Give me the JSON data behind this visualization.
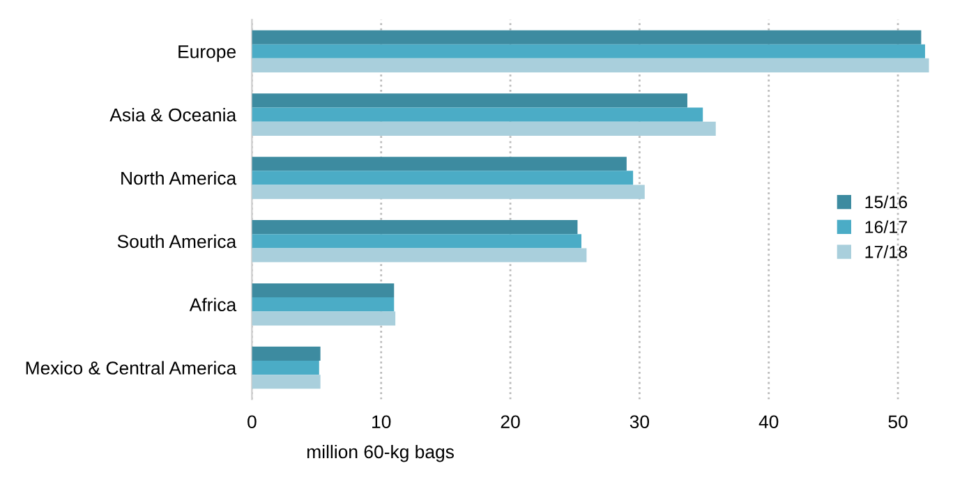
{
  "chart_data": {
    "type": "bar",
    "orientation": "horizontal",
    "xlabel": "million 60-kg bags",
    "categories": [
      "Europe",
      "Asia & Oceania",
      "North America",
      "South America",
      "Africa",
      "Mexico & Central America"
    ],
    "series": [
      {
        "name": "15/16",
        "color": "#3d8ba0",
        "values": [
          51.8,
          33.7,
          29.0,
          25.2,
          11.0,
          5.3
        ]
      },
      {
        "name": "16/17",
        "color": "#4bacc6",
        "values": [
          52.1,
          34.9,
          29.5,
          25.5,
          11.0,
          5.2
        ]
      },
      {
        "name": "17/18",
        "color": "#a9cfdc",
        "values": [
          52.4,
          35.9,
          30.4,
          25.9,
          11.1,
          5.3
        ]
      }
    ],
    "xlim": [
      0,
      52.5
    ],
    "xticks": [
      0,
      10,
      20,
      30,
      40,
      50
    ],
    "grid": "x",
    "legend": "right"
  }
}
